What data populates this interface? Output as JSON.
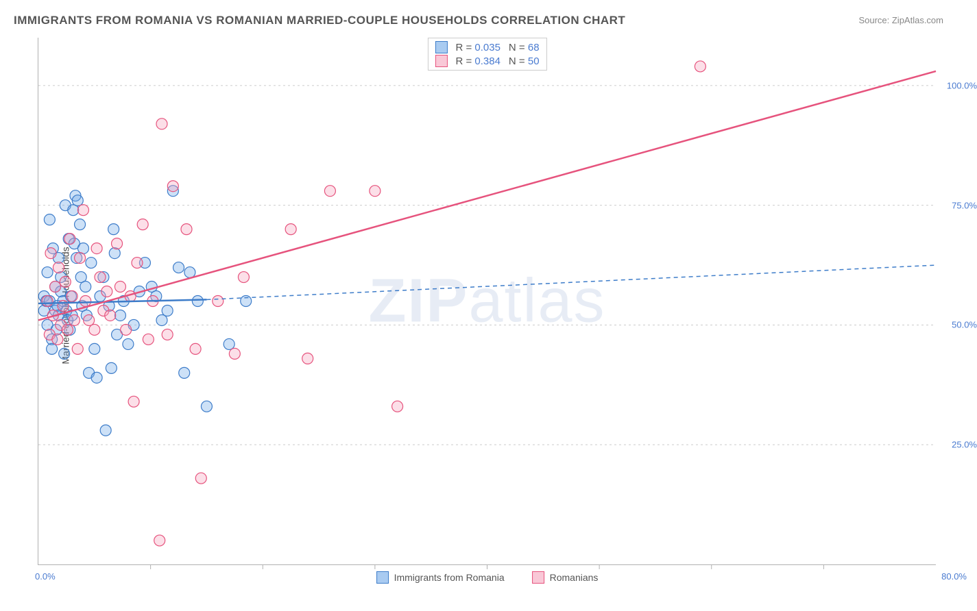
{
  "title": "IMMIGRANTS FROM ROMANIA VS ROMANIAN MARRIED-COUPLE HOUSEHOLDS CORRELATION CHART",
  "source_prefix": "Source: ",
  "source_name": "ZipAtlas.com",
  "y_axis_label": "Married-couple Households",
  "watermark_bold": "ZIP",
  "watermark_rest": "atlas",
  "chart": {
    "type": "scatter",
    "background_color": "#ffffff",
    "grid_color": "#cccccc",
    "axis_color": "#b0b0b0",
    "tick_label_color": "#4a7bd0",
    "text_color": "#555555",
    "xlim": [
      0,
      80
    ],
    "ylim": [
      0,
      110
    ],
    "x_origin_label": "0.0%",
    "x_max_label": "80.0%",
    "x_ticks": [
      10,
      20,
      30,
      40,
      50,
      60,
      70
    ],
    "y_gridlines": [
      25,
      50,
      75,
      100
    ],
    "y_tick_labels": [
      "25.0%",
      "50.0%",
      "75.0%",
      "100.0%"
    ],
    "marker_radius": 8,
    "marker_stroke_width": 1.2,
    "marker_fill_opacity": 0.35,
    "title_fontsize": 17,
    "label_fontsize": 14,
    "tick_fontsize": 13,
    "legend_fontsize": 14,
    "line_width_solid": 2.5,
    "line_width_dash": 1.5,
    "dash_pattern": "6,5"
  },
  "series": [
    {
      "name": "Immigrants from Romania",
      "color": "#6fa8e8",
      "stroke": "#3d7cc9",
      "r_label": "R = ",
      "r_value": "0.035",
      "n_label": "N = ",
      "n_value": "68",
      "trend_solid": {
        "x1": 0,
        "y1": 54.5,
        "x2": 15,
        "y2": 55.3
      },
      "trend_dash": {
        "x1": 15,
        "y1": 55.3,
        "x2": 80,
        "y2": 62.5
      },
      "points": [
        [
          0.5,
          53
        ],
        [
          0.5,
          56
        ],
        [
          0.7,
          55
        ],
        [
          0.8,
          50
        ],
        [
          0.8,
          61
        ],
        [
          1.0,
          72
        ],
        [
          1.0,
          55
        ],
        [
          1.2,
          47
        ],
        [
          1.2,
          45
        ],
        [
          1.3,
          66
        ],
        [
          1.5,
          58
        ],
        [
          1.5,
          53
        ],
        [
          1.6,
          49
        ],
        [
          1.7,
          54
        ],
        [
          1.8,
          52
        ],
        [
          1.8,
          64
        ],
        [
          2.0,
          57
        ],
        [
          2.0,
          60
        ],
        [
          2.2,
          55
        ],
        [
          2.3,
          44
        ],
        [
          2.4,
          75
        ],
        [
          2.5,
          53
        ],
        [
          2.6,
          51
        ],
        [
          2.7,
          68
        ],
        [
          2.8,
          49
        ],
        [
          2.9,
          56
        ],
        [
          3.0,
          52
        ],
        [
          3.1,
          74
        ],
        [
          3.2,
          67
        ],
        [
          3.3,
          77
        ],
        [
          3.4,
          64
        ],
        [
          3.5,
          76
        ],
        [
          3.7,
          71
        ],
        [
          3.8,
          60
        ],
        [
          3.9,
          54
        ],
        [
          4.0,
          66
        ],
        [
          4.2,
          58
        ],
        [
          4.3,
          52
        ],
        [
          4.5,
          40
        ],
        [
          4.7,
          63
        ],
        [
          5.0,
          45
        ],
        [
          5.2,
          39
        ],
        [
          5.5,
          56
        ],
        [
          5.8,
          60
        ],
        [
          6.0,
          28
        ],
        [
          6.3,
          54
        ],
        [
          6.5,
          41
        ],
        [
          6.7,
          70
        ],
        [
          6.8,
          65
        ],
        [
          7.0,
          48
        ],
        [
          7.3,
          52
        ],
        [
          7.6,
          55
        ],
        [
          8.0,
          46
        ],
        [
          8.5,
          50
        ],
        [
          9.0,
          57
        ],
        [
          9.5,
          63
        ],
        [
          10.1,
          58
        ],
        [
          10.5,
          56
        ],
        [
          11.0,
          51
        ],
        [
          11.5,
          53
        ],
        [
          12.0,
          78
        ],
        [
          12.5,
          62
        ],
        [
          13.0,
          40
        ],
        [
          13.5,
          61
        ],
        [
          14.2,
          55
        ],
        [
          15.0,
          33
        ],
        [
          17.0,
          46
        ],
        [
          18.5,
          55
        ]
      ]
    },
    {
      "name": "Romanians",
      "color": "#f5a3bd",
      "stroke": "#e6537d",
      "r_label": "R = ",
      "r_value": "0.384",
      "n_label": "N = ",
      "n_value": "50",
      "trend_solid": {
        "x1": 0,
        "y1": 51,
        "x2": 80,
        "y2": 103
      },
      "trend_dash": null,
      "points": [
        [
          0.8,
          55
        ],
        [
          1.0,
          48
        ],
        [
          1.1,
          65
        ],
        [
          1.3,
          52
        ],
        [
          1.5,
          58
        ],
        [
          1.7,
          47
        ],
        [
          1.8,
          62
        ],
        [
          2.0,
          50
        ],
        [
          2.2,
          54
        ],
        [
          2.4,
          59
        ],
        [
          2.6,
          49
        ],
        [
          2.8,
          68
        ],
        [
          3.0,
          56
        ],
        [
          3.2,
          51
        ],
        [
          3.5,
          45
        ],
        [
          3.7,
          64
        ],
        [
          4.0,
          74
        ],
        [
          4.2,
          55
        ],
        [
          4.5,
          51
        ],
        [
          5.0,
          49
        ],
        [
          5.2,
          66
        ],
        [
          5.5,
          60
        ],
        [
          5.8,
          53
        ],
        [
          6.1,
          57
        ],
        [
          6.4,
          52
        ],
        [
          7.0,
          67
        ],
        [
          7.3,
          58
        ],
        [
          7.8,
          49
        ],
        [
          8.2,
          56
        ],
        [
          8.5,
          34
        ],
        [
          8.8,
          63
        ],
        [
          9.3,
          71
        ],
        [
          9.8,
          47
        ],
        [
          10.2,
          55
        ],
        [
          10.8,
          5
        ],
        [
          11.0,
          92
        ],
        [
          11.5,
          48
        ],
        [
          12.0,
          79
        ],
        [
          13.2,
          70
        ],
        [
          14.0,
          45
        ],
        [
          14.5,
          18
        ],
        [
          16.0,
          55
        ],
        [
          17.5,
          44
        ],
        [
          18.3,
          60
        ],
        [
          22.5,
          70
        ],
        [
          24.0,
          43
        ],
        [
          26.0,
          78
        ],
        [
          30.0,
          78
        ],
        [
          32.0,
          33
        ],
        [
          59.0,
          104
        ]
      ]
    }
  ],
  "legend_bottom": {
    "items": [
      "Immigrants from Romania",
      "Romanians"
    ]
  }
}
